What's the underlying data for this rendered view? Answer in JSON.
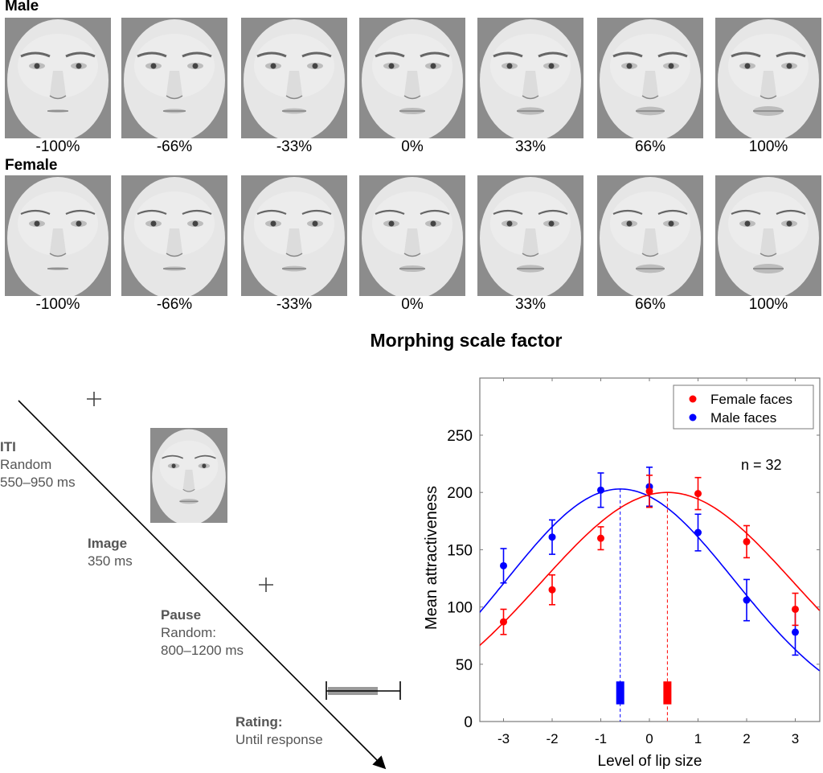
{
  "panel_a": {
    "rows": [
      {
        "label": "Male",
        "levels": [
          "-100%",
          "-66%",
          "-33%",
          "0%",
          "33%",
          "66%",
          "100%"
        ]
      },
      {
        "label": "Female",
        "levels": [
          "-100%",
          "-66%",
          "-33%",
          "0%",
          "33%",
          "66%",
          "100%"
        ]
      }
    ],
    "xlabel": "Morphing scale factor"
  },
  "timeline": {
    "stages": [
      {
        "title": "ITI",
        "lines": [
          "Random",
          "550–950 ms"
        ]
      },
      {
        "title": "Image",
        "lines": [
          "350 ms"
        ]
      },
      {
        "title": "Pause",
        "lines": [
          "Random:",
          "800–1200 ms"
        ]
      },
      {
        "title": "Rating:",
        "lines": [
          "Until response"
        ]
      }
    ],
    "icons": [
      "fixation-cross",
      "face-image",
      "fixation-cross",
      "rating-scale"
    ]
  },
  "chart_data": {
    "type": "scatter",
    "title": "",
    "xlabel": "Level of lip size",
    "ylabel": "Mean attractiveness",
    "xlim": [
      -3.5,
      3.5
    ],
    "ylim": [
      0,
      300
    ],
    "xticks": [
      -3,
      -2,
      -1,
      0,
      1,
      2,
      3
    ],
    "yticks": [
      0,
      50,
      100,
      150,
      200,
      250
    ],
    "grid": false,
    "legend_position": "top-right",
    "annotation": "n = 32",
    "x": [
      -3,
      -2,
      -1,
      0,
      1,
      2,
      3
    ],
    "series": [
      {
        "name": "Female faces",
        "color": "#ff0000",
        "values": [
          87,
          115,
          160,
          201,
          199,
          157,
          98
        ],
        "errors": [
          11,
          13,
          10,
          14,
          14,
          14,
          14
        ],
        "fit": {
          "type": "gaussian",
          "peak_x": 0.37,
          "peak_y": 200,
          "sigma": 2.6
        },
        "peak_marker_range": [
          15,
          35
        ]
      },
      {
        "name": "Male faces",
        "color": "#0000ff",
        "values": [
          136,
          161,
          202,
          205,
          165,
          106,
          78
        ],
        "errors": [
          15,
          15,
          15,
          17,
          16,
          18,
          20
        ],
        "fit": {
          "type": "gaussian",
          "peak_x": -0.6,
          "peak_y": 203,
          "sigma": 2.35
        },
        "peak_marker_range": [
          15,
          35
        ]
      }
    ]
  }
}
